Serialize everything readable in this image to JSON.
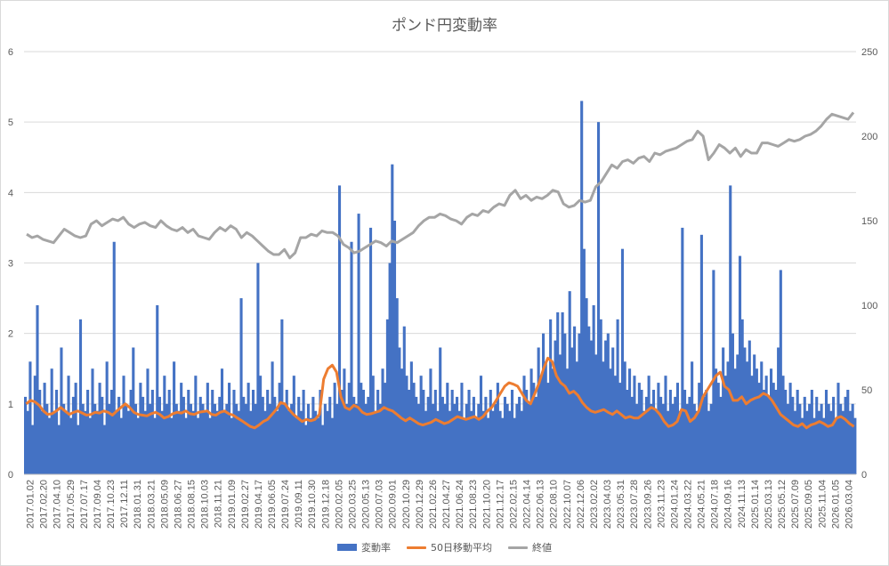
{
  "chart_data": {
    "type": "bar+line",
    "title": "ポンド円変動率",
    "xlabel": "",
    "ylabel": "",
    "y_left_lim": [
      0,
      6
    ],
    "y_left_ticks": [
      "0",
      "1",
      "2",
      "3",
      "4",
      "5",
      "6"
    ],
    "y_right_lim": [
      0,
      250
    ],
    "y_right_ticks": [
      "0",
      "50",
      "100",
      "150",
      "200",
      "250"
    ],
    "x_tick_labels": [
      "2017.01.02",
      "2017.02.20",
      "2017.04.10",
      "2017.05.29",
      "2017.07.17",
      "2017.09.04",
      "2017.10.23",
      "2017.12.11",
      "2018.01.31",
      "2018.03.21",
      "2018.05.09",
      "2018.06.27",
      "2018.08.15",
      "2018.10.03",
      "2018.11.21",
      "2019.01.09",
      "2019.02.27",
      "2019.04.17",
      "2019.06.05",
      "2019.07.24",
      "2019.09.11",
      "2019.10.30",
      "2019.12.18",
      "2020.02.05",
      "2020.03.25",
      "2020.05.13",
      "2020.07.03",
      "2020.09.01",
      "2020.10.29",
      "2020.12.29",
      "2021.02.26",
      "2021.04.27",
      "2021.06.24",
      "2021.08.23",
      "2021.10.20",
      "2021.12.17",
      "2022.02.15",
      "2022.04.14",
      "2022.06.13",
      "2022.08.10",
      "2022.10.07",
      "2022.12.06",
      "2023.02.02",
      "2023.04.03",
      "2023.05.31",
      "2023.07.28",
      "2023.09.26",
      "2023.11.23",
      "2024.01.24",
      "2024.03.22",
      "2024.05.21",
      "2024.07.18",
      "2024.09.16",
      "2024.11.13",
      "2025.01.14",
      "2025.03.13",
      "2025.05.12",
      "2025.07.09",
      "2025.09.05",
      "2025.11.04",
      "2026.01.05",
      "2026.03.04"
    ],
    "grid": true,
    "legend_position": "bottom",
    "series": [
      {
        "name": "変動率",
        "type": "bar",
        "axis": "left",
        "color": "#4472C4",
        "values": [
          1.1,
          0.9,
          1.6,
          0.7,
          1.4,
          2.4,
          1.2,
          0.9,
          1.3,
          1.0,
          0.8,
          1.5,
          0.9,
          1.2,
          0.7,
          1.8,
          1.0,
          0.9,
          1.4,
          0.8,
          1.1,
          1.3,
          0.7,
          2.2,
          1.0,
          0.9,
          1.2,
          0.8,
          1.5,
          1.0,
          0.9,
          1.3,
          1.1,
          0.7,
          1.6,
          1.0,
          1.2,
          3.3,
          0.9,
          1.1,
          0.8,
          1.4,
          1.0,
          0.9,
          1.2,
          1.8,
          1.0,
          0.8,
          1.3,
          1.1,
          0.9,
          1.5,
          1.0,
          1.2,
          0.8,
          2.4,
          1.1,
          0.9,
          1.4,
          1.0,
          1.2,
          0.8,
          1.6,
          1.0,
          0.9,
          1.3,
          1.1,
          0.8,
          1.2,
          1.0,
          0.9,
          1.4,
          0.8,
          1.1,
          1.0,
          0.9,
          1.3,
          0.8,
          1.2,
          1.0,
          0.9,
          1.1,
          1.5,
          0.9,
          1.0,
          1.3,
          0.8,
          1.2,
          1.0,
          0.9,
          2.5,
          1.1,
          1.0,
          1.3,
          0.9,
          1.2,
          1.0,
          3.0,
          1.4,
          1.1,
          0.9,
          1.2,
          1.0,
          1.6,
          1.1,
          0.9,
          1.3,
          2.2,
          1.0,
          1.2,
          0.9,
          1.0,
          1.4,
          0.8,
          1.1,
          0.9,
          1.2,
          0.7,
          1.0,
          0.8,
          1.1,
          0.9,
          0.8,
          1.2,
          0.7,
          1.0,
          0.9,
          1.1,
          0.8,
          1.3,
          1.0,
          4.1,
          1.2,
          1.5,
          1.0,
          1.3,
          3.3,
          1.1,
          1.0,
          3.7,
          1.3,
          1.2,
          1.0,
          1.1,
          3.5,
          1.4,
          0.9,
          1.2,
          1.0,
          1.5,
          1.3,
          2.2,
          3.0,
          4.4,
          3.6,
          2.5,
          1.8,
          1.5,
          2.1,
          1.4,
          1.2,
          1.6,
          1.3,
          1.1,
          1.0,
          1.4,
          1.2,
          0.9,
          1.1,
          1.5,
          1.0,
          1.2,
          0.9,
          1.8,
          1.1,
          1.0,
          1.3,
          0.9,
          1.2,
          1.0,
          1.1,
          0.9,
          1.3,
          0.8,
          1.0,
          1.2,
          0.9,
          1.1,
          0.8,
          1.0,
          1.4,
          0.9,
          1.1,
          0.8,
          1.2,
          0.9,
          1.0,
          1.3,
          0.9,
          0.8,
          1.1,
          1.0,
          0.9,
          1.2,
          0.8,
          1.0,
          1.1,
          0.9,
          1.4,
          1.2,
          1.0,
          1.5,
          1.3,
          1.1,
          1.8,
          1.4,
          2.0,
          1.6,
          1.3,
          2.2,
          1.5,
          1.9,
          2.3,
          1.7,
          2.3,
          2.0,
          1.5,
          2.6,
          1.8,
          2.1,
          1.6,
          2.0,
          5.3,
          3.2,
          2.5,
          2.1,
          1.9,
          2.4,
          1.7,
          5.0,
          2.2,
          1.6,
          1.9,
          2.0,
          1.5,
          1.8,
          1.4,
          2.2,
          1.3,
          3.2,
          1.6,
          1.2,
          1.5,
          1.1,
          1.4,
          1.0,
          1.3,
          1.2,
          0.9,
          1.1,
          1.4,
          1.0,
          1.2,
          0.9,
          1.3,
          1.1,
          1.0,
          1.4,
          0.9,
          1.2,
          1.0,
          1.1,
          1.3,
          0.9,
          3.5,
          1.2,
          1.0,
          1.1,
          1.6,
          1.0,
          0.9,
          1.3,
          3.4,
          1.1,
          1.2,
          0.9,
          1.0,
          2.9,
          1.5,
          1.3,
          1.1,
          1.8,
          1.4,
          1.6,
          4.1,
          2.0,
          1.5,
          1.7,
          3.1,
          2.2,
          1.8,
          1.6,
          1.9,
          1.4,
          1.7,
          1.5,
          1.3,
          1.6,
          1.2,
          1.4,
          1.1,
          1.5,
          1.3,
          1.2,
          1.8,
          2.9,
          1.4,
          1.2,
          1.0,
          1.3,
          1.1,
          0.9,
          1.2,
          1.0,
          0.8,
          1.1,
          0.9,
          1.0,
          1.2,
          0.8,
          1.1,
          0.9,
          1.0,
          0.8,
          1.2,
          1.0,
          0.9,
          1.1,
          0.8,
          1.3,
          1.0,
          0.9,
          1.1,
          1.2,
          0.9,
          1.0,
          0.8
        ]
      },
      {
        "name": "50日移動平均",
        "type": "line",
        "axis": "left",
        "color": "#ED7D31",
        "values": [
          1.0,
          1.05,
          1.03,
          0.98,
          0.9,
          0.85,
          0.86,
          0.9,
          0.95,
          0.9,
          0.85,
          0.88,
          0.9,
          0.87,
          0.84,
          0.85,
          0.88,
          0.87,
          0.9,
          0.88,
          0.84,
          0.9,
          0.95,
          1.0,
          0.95,
          0.88,
          0.85,
          0.84,
          0.83,
          0.86,
          0.88,
          0.85,
          0.8,
          0.82,
          0.86,
          0.88,
          0.87,
          0.9,
          0.86,
          0.85,
          0.88,
          0.89,
          0.9,
          0.85,
          0.84,
          0.88,
          0.9,
          0.86,
          0.84,
          0.8,
          0.76,
          0.72,
          0.68,
          0.66,
          0.7,
          0.75,
          0.78,
          0.85,
          0.92,
          1.02,
          1.0,
          0.92,
          0.85,
          0.8,
          0.75,
          0.78,
          0.76,
          0.78,
          0.85,
          1.35,
          1.5,
          1.55,
          1.45,
          1.1,
          0.95,
          0.92,
          0.98,
          0.95,
          0.88,
          0.85,
          0.86,
          0.88,
          0.9,
          0.95,
          0.92,
          0.9,
          0.85,
          0.8,
          0.76,
          0.8,
          0.76,
          0.72,
          0.7,
          0.72,
          0.74,
          0.78,
          0.75,
          0.72,
          0.74,
          0.78,
          0.82,
          0.8,
          0.78,
          0.8,
          0.82,
          0.78,
          0.82,
          0.9,
          0.95,
          1.05,
          1.15,
          1.25,
          1.3,
          1.28,
          1.25,
          1.15,
          1.05,
          1.0,
          1.15,
          1.3,
          1.5,
          1.65,
          1.6,
          1.4,
          1.3,
          1.25,
          1.15,
          1.18,
          1.12,
          1.02,
          0.95,
          0.9,
          0.88,
          0.9,
          0.92,
          0.88,
          0.85,
          0.9,
          0.85,
          0.8,
          0.82,
          0.8,
          0.8,
          0.85,
          0.9,
          0.95,
          0.92,
          0.85,
          0.75,
          0.68,
          0.7,
          0.75,
          0.92,
          0.9,
          0.75,
          0.8,
          0.9,
          1.1,
          1.2,
          1.3,
          1.4,
          1.45,
          1.25,
          1.2,
          1.05,
          1.05,
          1.1,
          1.0,
          1.05,
          1.08,
          1.1,
          1.15,
          1.12,
          1.05,
          0.95,
          0.85,
          0.8,
          0.75,
          0.7,
          0.68,
          0.72,
          0.66,
          0.7,
          0.72,
          0.75,
          0.72,
          0.68,
          0.7,
          0.8,
          0.82,
          0.78,
          0.72,
          0.68
        ]
      },
      {
        "name": "終値",
        "type": "line",
        "axis": "right",
        "color": "#A5A5A5",
        "values": [
          142,
          140,
          141,
          139,
          138,
          137,
          141,
          145,
          143,
          141,
          140,
          141,
          148,
          150,
          147,
          149,
          151,
          150,
          152,
          148,
          146,
          148,
          149,
          147,
          146,
          150,
          147,
          145,
          144,
          146,
          143,
          145,
          141,
          140,
          139,
          143,
          146,
          144,
          147,
          145,
          140,
          143,
          141,
          138,
          135,
          132,
          130,
          130,
          133,
          128,
          131,
          140,
          140,
          142,
          141,
          144,
          143,
          143,
          141,
          136,
          134,
          131,
          132,
          134,
          136,
          138,
          137,
          135,
          138,
          137,
          139,
          141,
          143,
          147,
          150,
          152,
          152,
          154,
          153,
          151,
          150,
          148,
          152,
          154,
          153,
          156,
          155,
          158,
          160,
          159,
          165,
          168,
          163,
          165,
          162,
          164,
          163,
          165,
          168,
          167,
          160,
          158,
          159,
          162,
          161,
          162,
          170,
          173,
          178,
          183,
          181,
          185,
          186,
          184,
          187,
          188,
          185,
          190,
          189,
          191,
          192,
          193,
          195,
          197,
          198,
          203,
          200,
          186,
          190,
          195,
          193,
          190,
          193,
          188,
          192,
          190,
          190,
          196,
          196,
          195,
          194,
          196,
          198,
          197,
          198,
          200,
          201,
          203,
          206,
          210,
          213,
          212,
          211,
          210,
          214
        ]
      }
    ]
  }
}
